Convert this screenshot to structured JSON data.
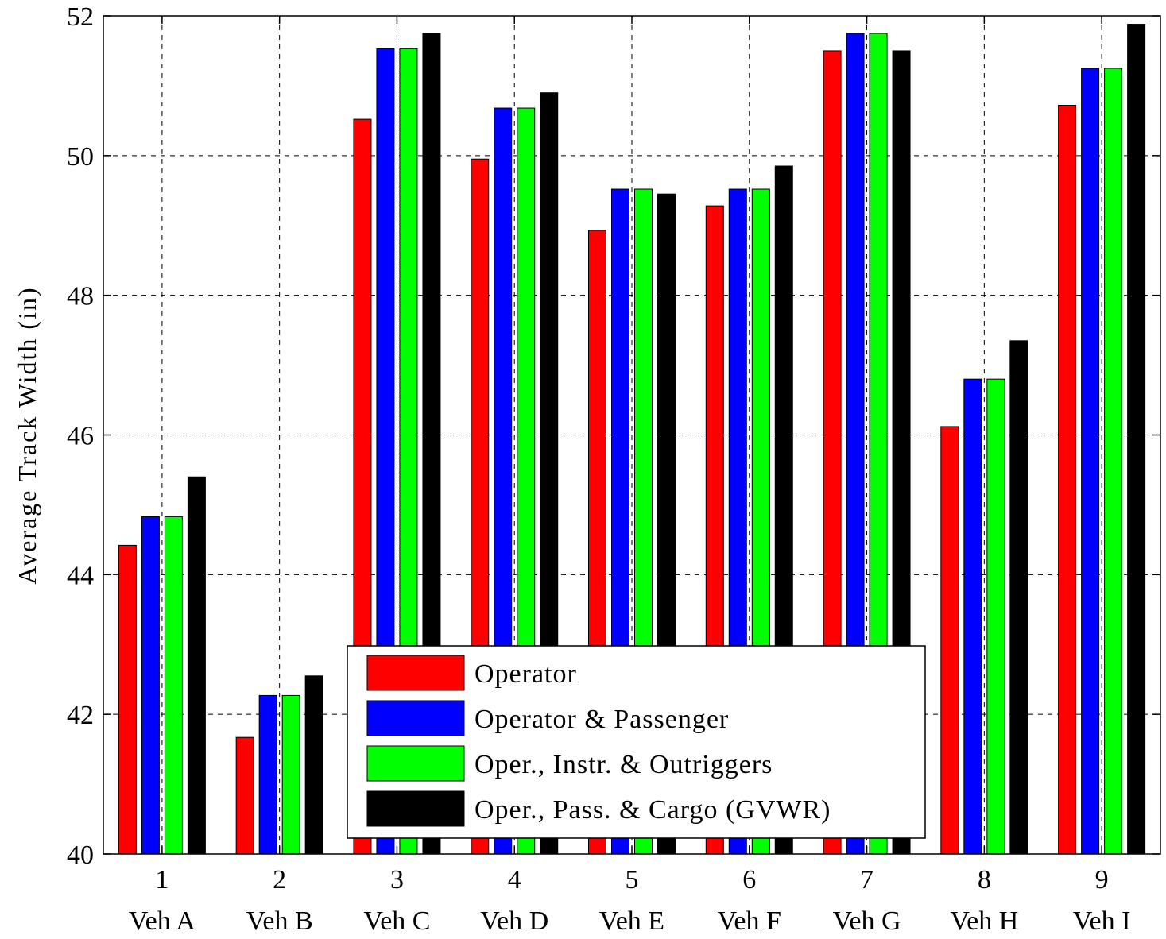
{
  "chart_data": {
    "type": "bar",
    "title": "",
    "xlabel": "",
    "ylabel": "Average Track Width (in)",
    "ylim": [
      40,
      52
    ],
    "yticks": [
      40,
      42,
      44,
      46,
      48,
      50,
      52
    ],
    "grid": true,
    "legend_position": "bottom-center",
    "x": [
      "1",
      "2",
      "3",
      "4",
      "5",
      "6",
      "7",
      "8",
      "9"
    ],
    "categories": [
      "Veh A",
      "Veh B",
      "Veh C",
      "Veh D",
      "Veh E",
      "Veh F",
      "Veh G",
      "Veh H",
      "Veh I"
    ],
    "series": [
      {
        "name": "Operator",
        "color": "#ff0000",
        "values": [
          44.42,
          41.67,
          50.52,
          49.95,
          48.93,
          49.28,
          51.5,
          46.12,
          50.72
        ]
      },
      {
        "name": "Operator & Passenger",
        "color": "#0000ff",
        "values": [
          44.83,
          42.27,
          51.53,
          50.68,
          49.52,
          49.52,
          51.75,
          46.8,
          51.25
        ]
      },
      {
        "name": "Oper., Instr. & Outriggers",
        "color": "#00ff00",
        "values": [
          44.83,
          42.27,
          51.53,
          50.68,
          49.52,
          49.52,
          51.75,
          46.8,
          51.25
        ]
      },
      {
        "name": "Oper., Pass. & Cargo (GVWR)",
        "color": "#000000",
        "values": [
          45.4,
          42.55,
          51.75,
          50.9,
          49.45,
          49.85,
          51.5,
          47.35,
          51.88
        ]
      }
    ]
  }
}
